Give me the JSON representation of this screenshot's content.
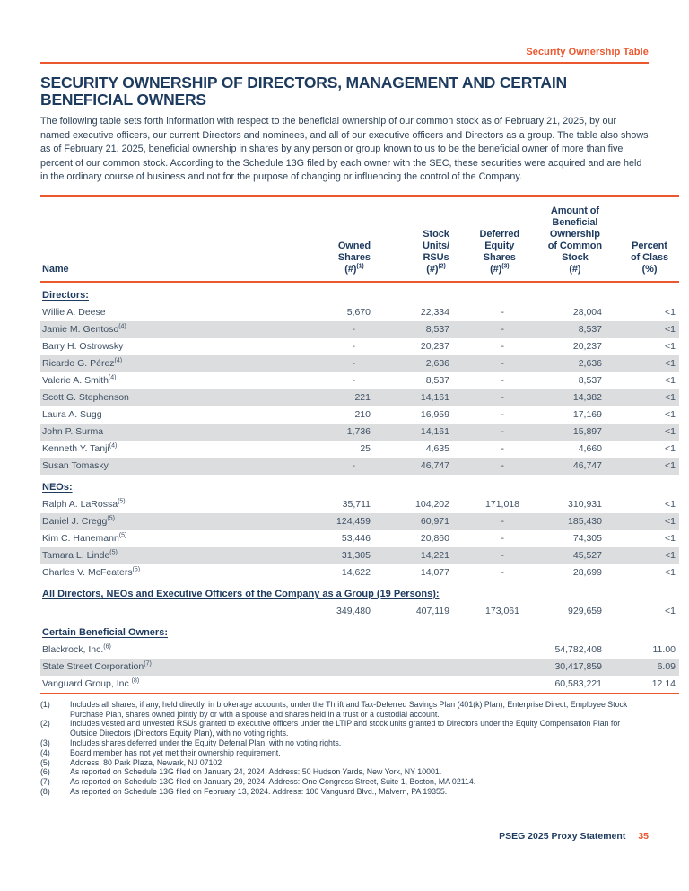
{
  "colors": {
    "accent_orange": "#EB572F",
    "heading_navy": "#1D3A5F",
    "body_text": "#2C4157",
    "table_text": "#3E5064",
    "row_shade": "#DCDDDE"
  },
  "page": {
    "running_header": "Security Ownership Table",
    "title": "SECURITY OWNERSHIP OF DIRECTORS, MANAGEMENT AND CERTAIN BENEFICIAL OWNERS",
    "intro": "The following table sets forth information with respect to the beneficial ownership of our common stock as of February 21, 2025, by our named executive officers, our current Directors and nominees, and all of our executive officers and Directors as a group. The table also shows as of February 21, 2025, beneficial ownership in shares by any person or group known to us to be the beneficial owner of more than five percent of our common stock. According to the Schedule 13G filed by each owner with the SEC, these securities were acquired and are held in the ordinary course of business and not for the purpose of changing or influencing the control of the Company.",
    "footer_text": "PSEG 2025 Proxy Statement",
    "footer_page_number": "35"
  },
  "table": {
    "columns": [
      {
        "id": "name",
        "lines": [
          "Name"
        ],
        "sup": ""
      },
      {
        "id": "owned",
        "lines": [
          "Owned",
          "Shares",
          "(#)"
        ],
        "sup": "(1)"
      },
      {
        "id": "units",
        "lines": [
          "Stock",
          "Units/",
          "RSUs",
          "(#)"
        ],
        "sup": "(2)"
      },
      {
        "id": "deferred",
        "lines": [
          "Deferred",
          "Equity",
          "Shares",
          "(#)"
        ],
        "sup": "(3)"
      },
      {
        "id": "amount",
        "lines": [
          "Amount of",
          "Beneficial",
          "Ownership",
          "of Common",
          "Stock",
          "(#)"
        ],
        "sup": ""
      },
      {
        "id": "percent",
        "lines": [
          "Percent",
          "of Class",
          "(%)"
        ],
        "sup": ""
      }
    ],
    "sections": [
      {
        "heading": "Directors:",
        "rows": [
          {
            "name": "Willie A. Deese",
            "name_sup": "",
            "values": [
              "5,670",
              "22,334",
              "-",
              "28,004",
              "<1"
            ]
          },
          {
            "name": "Jamie M. Gentoso",
            "name_sup": "(4)",
            "values": [
              "-",
              "8,537",
              "-",
              "8,537",
              "<1"
            ]
          },
          {
            "name": "Barry H. Ostrowsky",
            "name_sup": "",
            "values": [
              "-",
              "20,237",
              "-",
              "20,237",
              "<1"
            ]
          },
          {
            "name": "Ricardo G. Pérez",
            "name_sup": "(4)",
            "values": [
              "-",
              "2,636",
              "-",
              "2,636",
              "<1"
            ]
          },
          {
            "name": "Valerie A. Smith",
            "name_sup": "(4)",
            "values": [
              "-",
              "8,537",
              "-",
              "8,537",
              "<1"
            ]
          },
          {
            "name": "Scott G. Stephenson",
            "name_sup": "",
            "values": [
              "221",
              "14,161",
              "-",
              "14,382",
              "<1"
            ]
          },
          {
            "name": "Laura A. Sugg",
            "name_sup": "",
            "values": [
              "210",
              "16,959",
              "-",
              "17,169",
              "<1"
            ]
          },
          {
            "name": "John P. Surma",
            "name_sup": "",
            "values": [
              "1,736",
              "14,161",
              "-",
              "15,897",
              "<1"
            ]
          },
          {
            "name": "Kenneth Y. Tanji",
            "name_sup": "(4)",
            "values": [
              "25",
              "4,635",
              "-",
              "4,660",
              "<1"
            ]
          },
          {
            "name": "Susan Tomasky",
            "name_sup": "",
            "values": [
              "-",
              "46,747",
              "-",
              "46,747",
              "<1"
            ]
          }
        ]
      },
      {
        "heading": "NEOs:",
        "rows": [
          {
            "name": "Ralph A. LaRossa",
            "name_sup": "(5)",
            "values": [
              "35,711",
              "104,202",
              "171,018",
              "310,931",
              "<1"
            ]
          },
          {
            "name": "Daniel J. Cregg",
            "name_sup": "(5)",
            "values": [
              "124,459",
              "60,971",
              "-",
              "185,430",
              "<1"
            ]
          },
          {
            "name": "Kim C. Hanemann",
            "name_sup": "(5)",
            "values": [
              "53,446",
              "20,860",
              "-",
              "74,305",
              "<1"
            ]
          },
          {
            "name": "Tamara L. Linde",
            "name_sup": "(5)",
            "values": [
              "31,305",
              "14,221",
              "-",
              "45,527",
              "<1"
            ]
          },
          {
            "name": "Charles V. McFeaters",
            "name_sup": "(5)",
            "values": [
              "14,622",
              "14,077",
              "-",
              "28,699",
              "<1"
            ]
          }
        ]
      },
      {
        "heading": "All Directors, NEOs and Executive Officers of the Company as a Group (19 Persons):",
        "rows": [
          {
            "name": "",
            "name_sup": "",
            "values": [
              "349,480",
              "407,119",
              "173,061",
              "929,659",
              "<1"
            ]
          }
        ]
      },
      {
        "heading": "Certain Beneficial Owners:",
        "rows": [
          {
            "name": "Blackrock, Inc.",
            "name_sup": "(6)",
            "values": [
              "",
              "",
              "",
              "54,782,408",
              "11.00"
            ]
          },
          {
            "name": "State Street Corporation",
            "name_sup": "(7)",
            "values": [
              "",
              "",
              "",
              "30,417,859",
              "6.09"
            ]
          },
          {
            "name": "Vanguard Group, Inc.",
            "name_sup": "(8)",
            "values": [
              "",
              "",
              "",
              "60,583,221",
              "12.14"
            ]
          }
        ]
      }
    ]
  },
  "footnotes": [
    {
      "marker": "(1)",
      "text": "Includes all shares, if any, held directly, in brokerage accounts, under the Thrift and Tax-Deferred Savings Plan (401(k) Plan), Enterprise Direct, Employee Stock Purchase Plan, shares owned jointly by or with a spouse and shares held in a trust or a custodial account."
    },
    {
      "marker": "(2)",
      "text": "Includes vested and unvested RSUs granted to executive officers under the LTIP and stock units granted to Directors under the Equity Compensation Plan for Outside Directors (Directors Equity Plan), with no voting rights."
    },
    {
      "marker": "(3)",
      "text": "Includes shares deferred under the Equity Deferral Plan, with no voting rights."
    },
    {
      "marker": "(4)",
      "text": "Board member has not yet met their ownership requirement."
    },
    {
      "marker": "(5)",
      "text": "Address: 80 Park Plaza, Newark, NJ 07102"
    },
    {
      "marker": "(6)",
      "text": "As reported on Schedule 13G filed on January 24, 2024. Address: 50 Hudson Yards, New York, NY 10001."
    },
    {
      "marker": "(7)",
      "text": "As reported on Schedule 13G filed on January 29, 2024. Address: One Congress Street, Suite 1, Boston, MA 02114."
    },
    {
      "marker": "(8)",
      "text": "As reported on Schedule 13G filed on February 13, 2024. Address: 100 Vanguard Blvd., Malvern, PA 19355."
    }
  ]
}
